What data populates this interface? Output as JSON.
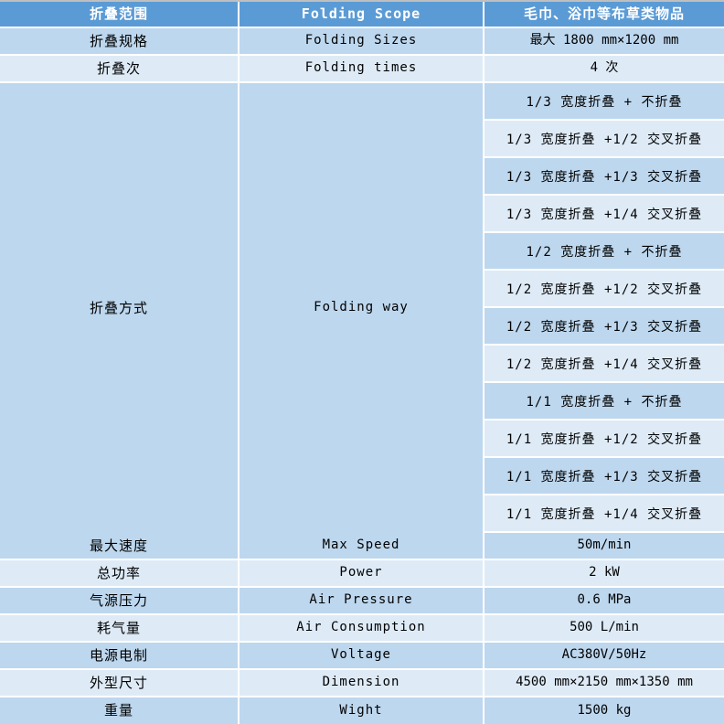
{
  "table": {
    "header": {
      "col1": "折叠范围",
      "col2": "Folding Scope",
      "col3": "毛巾、浴巾等布草类物品"
    },
    "rows": [
      {
        "cn": "折叠规格",
        "en": "Folding Sizes",
        "value": "最大 1800 mm×1200 mm"
      },
      {
        "cn": "折叠次",
        "en": "Folding times",
        "value": "4 次"
      }
    ],
    "folding_way": {
      "cn": "折叠方式",
      "en": "Folding way",
      "options": [
        "1/3 宽度折叠 + 不折叠",
        "1/3 宽度折叠 +1/2 交叉折叠",
        "1/3 宽度折叠 +1/3 交叉折叠",
        "1/3 宽度折叠 +1/4 交叉折叠",
        "1/2 宽度折叠 + 不折叠",
        "1/2 宽度折叠 +1/2 交叉折叠",
        "1/2 宽度折叠 +1/3 交叉折叠",
        "1/2 宽度折叠 +1/4 交叉折叠",
        "1/1 宽度折叠 + 不折叠",
        "1/1 宽度折叠 +1/2 交叉折叠",
        "1/1 宽度折叠 +1/3 交叉折叠",
        "1/1 宽度折叠 +1/4 交叉折叠"
      ]
    },
    "bottom_rows": [
      {
        "cn": "最大速度",
        "en": "Max Speed",
        "value": "50m/min"
      },
      {
        "cn": "总功率",
        "en": "Power",
        "value": "2 kW"
      },
      {
        "cn": "气源压力",
        "en": "Air Pressure",
        "value": "0.6 MPa"
      },
      {
        "cn": "耗气量",
        "en": "Air Consumption",
        "value": "500 L/min"
      },
      {
        "cn": "电源电制",
        "en": "Voltage",
        "value": "AC380V/50Hz"
      },
      {
        "cn": "外型尺寸",
        "en": "Dimension",
        "value": "4500 mm×2150 mm×1350 mm"
      },
      {
        "cn": "重量",
        "en": "Wight",
        "value": "1500 kg"
      }
    ],
    "colors": {
      "header_bg": "#5B9BD5",
      "header_text": "#FFFFFF",
      "band_dark": "#BDD7EE",
      "band_light": "#DEEBF7",
      "grid_line": "#FFFFFF",
      "top_border": "#BFBFBF",
      "body_text": "#000000"
    }
  }
}
